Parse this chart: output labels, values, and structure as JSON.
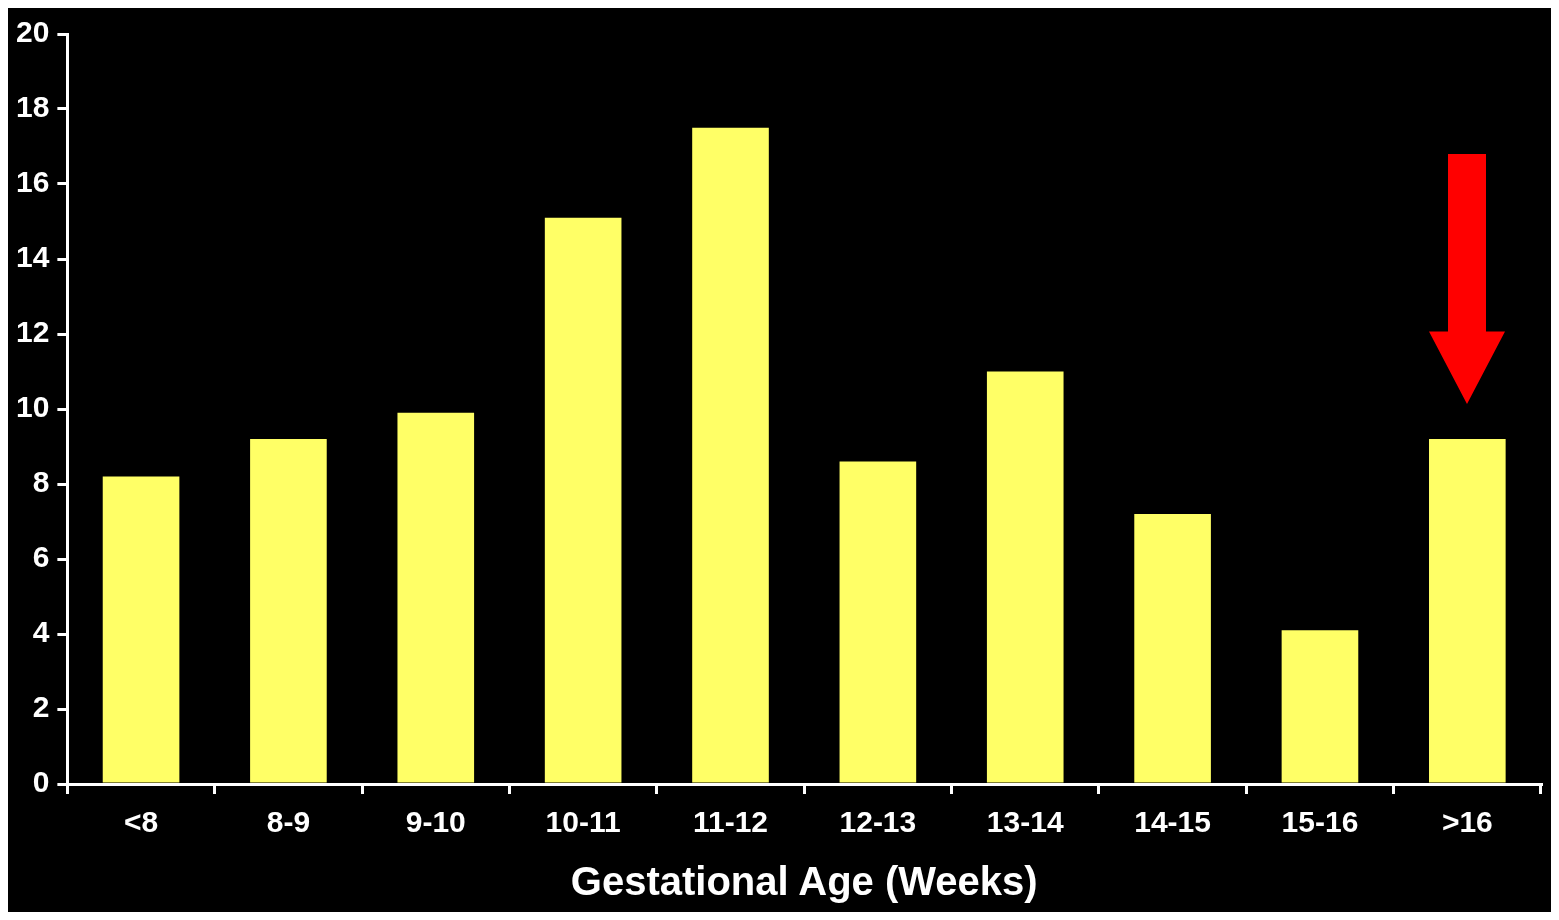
{
  "chart_data": {
    "type": "bar",
    "xlabel": "Gestational Age (Weeks)",
    "categories": [
      "<8",
      "8-9",
      "9-10",
      "10-11",
      "11-12",
      "12-13",
      "13-14",
      "14-15",
      "15-16",
      ">16"
    ],
    "values": [
      8.2,
      9.2,
      9.9,
      15.1,
      17.5,
      8.6,
      11.0,
      7.2,
      4.1,
      9.2
    ],
    "color": "#ffff66",
    "ylim": [
      0,
      20
    ],
    "yticks": [
      0,
      2,
      4,
      6,
      8,
      10,
      12,
      14,
      16,
      18,
      20
    ]
  }
}
